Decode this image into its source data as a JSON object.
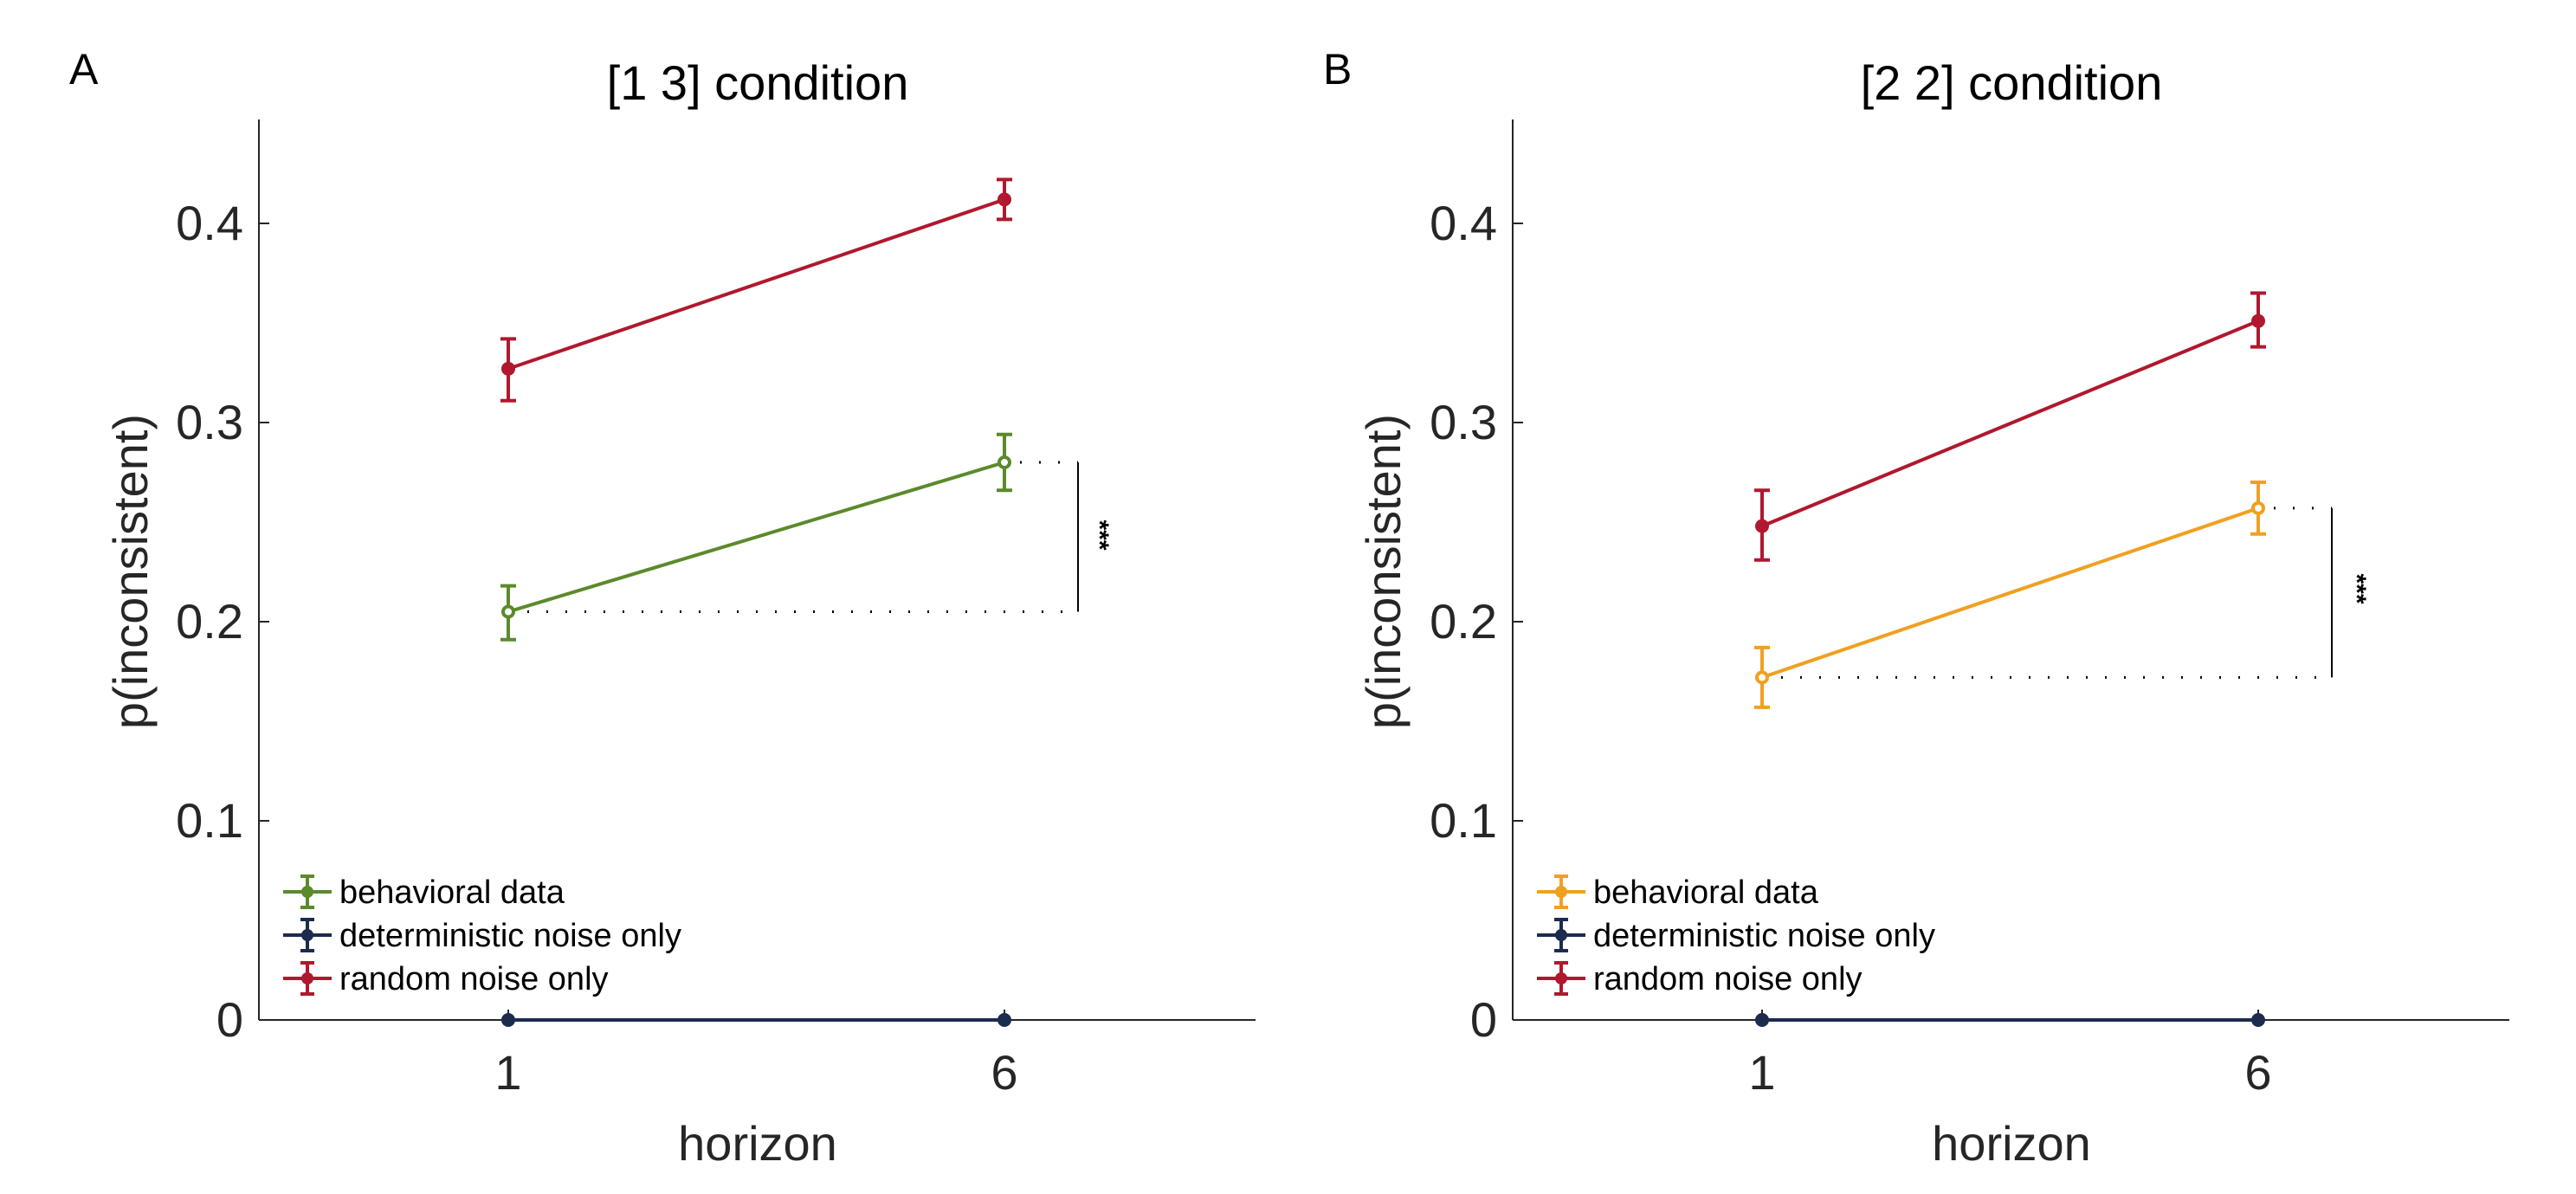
{
  "colors": {
    "axis": "#262626",
    "behavioral_green": "#5B8A2B",
    "behavioral_orange": "#F0A020",
    "deterministic": "#1B2C4E",
    "random": "#B0182E",
    "annotation": "#000000"
  },
  "chart_data": [
    {
      "type": "line",
      "panel_letter": "A",
      "title": "[1 3] condition",
      "xlabel": "horizon",
      "ylabel": "p(inconsistent)",
      "categories": [
        "1",
        "6"
      ],
      "yticks": [
        0,
        0.1,
        0.2,
        0.3,
        0.4
      ],
      "yticklabels": [
        "0",
        "0.1",
        "0.2",
        "0.3",
        "0.4"
      ],
      "ylim": [
        0,
        0.45
      ],
      "grid": false,
      "legend_position": "bottom-left",
      "series": [
        {
          "name": "behavioral data",
          "color_key": "behavioral_green",
          "values": [
            0.205,
            0.28
          ],
          "err_low": [
            0.191,
            0.266
          ],
          "err_high": [
            0.218,
            0.294
          ],
          "marker": "hollow"
        },
        {
          "name": "deterministic noise only",
          "color_key": "deterministic",
          "values": [
            0,
            0
          ],
          "err_low": [
            0,
            0
          ],
          "err_high": [
            0,
            0
          ],
          "marker": "filled"
        },
        {
          "name": "random noise only",
          "color_key": "random",
          "values": [
            0.327,
            0.412
          ],
          "err_low": [
            0.311,
            0.402
          ],
          "err_high": [
            0.342,
            0.422
          ],
          "marker": "filled"
        }
      ],
      "significance": {
        "label": "***",
        "y_low": 0.205,
        "y_high": 0.28
      }
    },
    {
      "type": "line",
      "panel_letter": "B",
      "title": "[2 2] condition",
      "xlabel": "horizon",
      "ylabel": "p(inconsistent)",
      "categories": [
        "1",
        "6"
      ],
      "yticks": [
        0,
        0.1,
        0.2,
        0.3,
        0.4
      ],
      "yticklabels": [
        "0",
        "0.1",
        "0.2",
        "0.3",
        "0.4"
      ],
      "ylim": [
        0,
        0.45
      ],
      "grid": false,
      "legend_position": "bottom-left",
      "series": [
        {
          "name": "behavioral data",
          "color_key": "behavioral_orange",
          "values": [
            0.172,
            0.257
          ],
          "err_low": [
            0.157,
            0.244
          ],
          "err_high": [
            0.187,
            0.27
          ],
          "marker": "hollow"
        },
        {
          "name": "deterministic noise only",
          "color_key": "deterministic",
          "values": [
            0,
            0
          ],
          "err_low": [
            0,
            0
          ],
          "err_high": [
            0,
            0
          ],
          "marker": "filled"
        },
        {
          "name": "random noise only",
          "color_key": "random",
          "values": [
            0.248,
            0.351
          ],
          "err_low": [
            0.231,
            0.338
          ],
          "err_high": [
            0.266,
            0.365
          ],
          "marker": "filled"
        }
      ],
      "significance": {
        "label": "***",
        "y_low": 0.172,
        "y_high": 0.257
      }
    }
  ]
}
